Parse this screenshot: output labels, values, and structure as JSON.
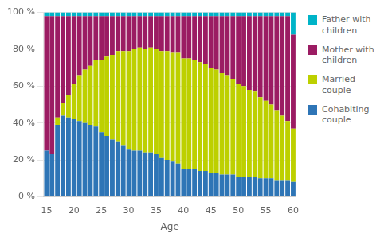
{
  "chart_data": {
    "type": "bar",
    "stacked": true,
    "xlabel": "Age",
    "x": [
      15,
      16,
      17,
      18,
      19,
      20,
      21,
      22,
      23,
      24,
      25,
      26,
      27,
      28,
      29,
      30,
      31,
      32,
      33,
      34,
      35,
      36,
      37,
      38,
      39,
      40,
      41,
      42,
      43,
      44,
      45,
      46,
      47,
      48,
      49,
      50,
      51,
      52,
      53,
      54,
      55,
      56,
      57,
      58,
      59,
      60
    ],
    "series": [
      {
        "name": "Cohabiting\ncouple",
        "color": "#2e75b6",
        "values": [
          25,
          23,
          39,
          44,
          43,
          42,
          41,
          40,
          39,
          38,
          35,
          33,
          31,
          30,
          28,
          26,
          25,
          25,
          24,
          24,
          23,
          21,
          20,
          19,
          18,
          15,
          15,
          15,
          14,
          14,
          13,
          13,
          12,
          12,
          12,
          11,
          11,
          11,
          11,
          10,
          10,
          10,
          9,
          9,
          9,
          8
        ]
      },
      {
        "name": "Married\ncouple",
        "color": "#bdd000",
        "values": [
          0,
          0,
          4,
          7,
          12,
          19,
          25,
          29,
          32,
          36,
          39,
          43,
          46,
          49,
          51,
          53,
          55,
          56,
          56,
          57,
          57,
          58,
          59,
          59,
          60,
          60,
          60,
          59,
          59,
          58,
          57,
          56,
          55,
          54,
          52,
          50,
          49,
          47,
          46,
          44,
          42,
          40,
          38,
          35,
          32,
          29
        ]
      },
      {
        "name": "Mother with\nchildren",
        "color": "#9b1c63",
        "values": [
          73,
          75,
          55,
          47,
          43,
          37,
          32,
          29,
          27,
          24,
          24,
          22,
          21,
          19,
          19,
          19,
          18,
          17,
          18,
          17,
          18,
          19,
          19,
          20,
          20,
          23,
          23,
          24,
          25,
          26,
          28,
          29,
          31,
          32,
          34,
          37,
          38,
          40,
          41,
          44,
          46,
          48,
          51,
          54,
          57,
          51
        ]
      },
      {
        "name": "Father with\nchildren",
        "color": "#00b4c8",
        "values": [
          2,
          2,
          2,
          2,
          2,
          2,
          2,
          2,
          2,
          2,
          2,
          2,
          2,
          2,
          2,
          2,
          2,
          2,
          2,
          2,
          2,
          2,
          2,
          2,
          2,
          2,
          2,
          2,
          2,
          2,
          2,
          2,
          2,
          2,
          2,
          2,
          2,
          2,
          2,
          2,
          2,
          2,
          2,
          2,
          2,
          12
        ]
      }
    ],
    "xlim": [
      14.5,
      60.5
    ],
    "xticks": [
      15,
      20,
      25,
      30,
      35,
      40,
      45,
      50,
      55,
      60
    ],
    "ylim": [
      0,
      100
    ],
    "yticks": [
      {
        "value": 0,
        "label": "0 %"
      },
      {
        "value": 20,
        "label": "20 %"
      },
      {
        "value": 40,
        "label": "40 %"
      },
      {
        "value": 60,
        "label": "60 %"
      },
      {
        "value": 80,
        "label": "80 %"
      },
      {
        "value": 100,
        "label": "100 %"
      }
    ],
    "grid": "y",
    "legend": "right"
  }
}
